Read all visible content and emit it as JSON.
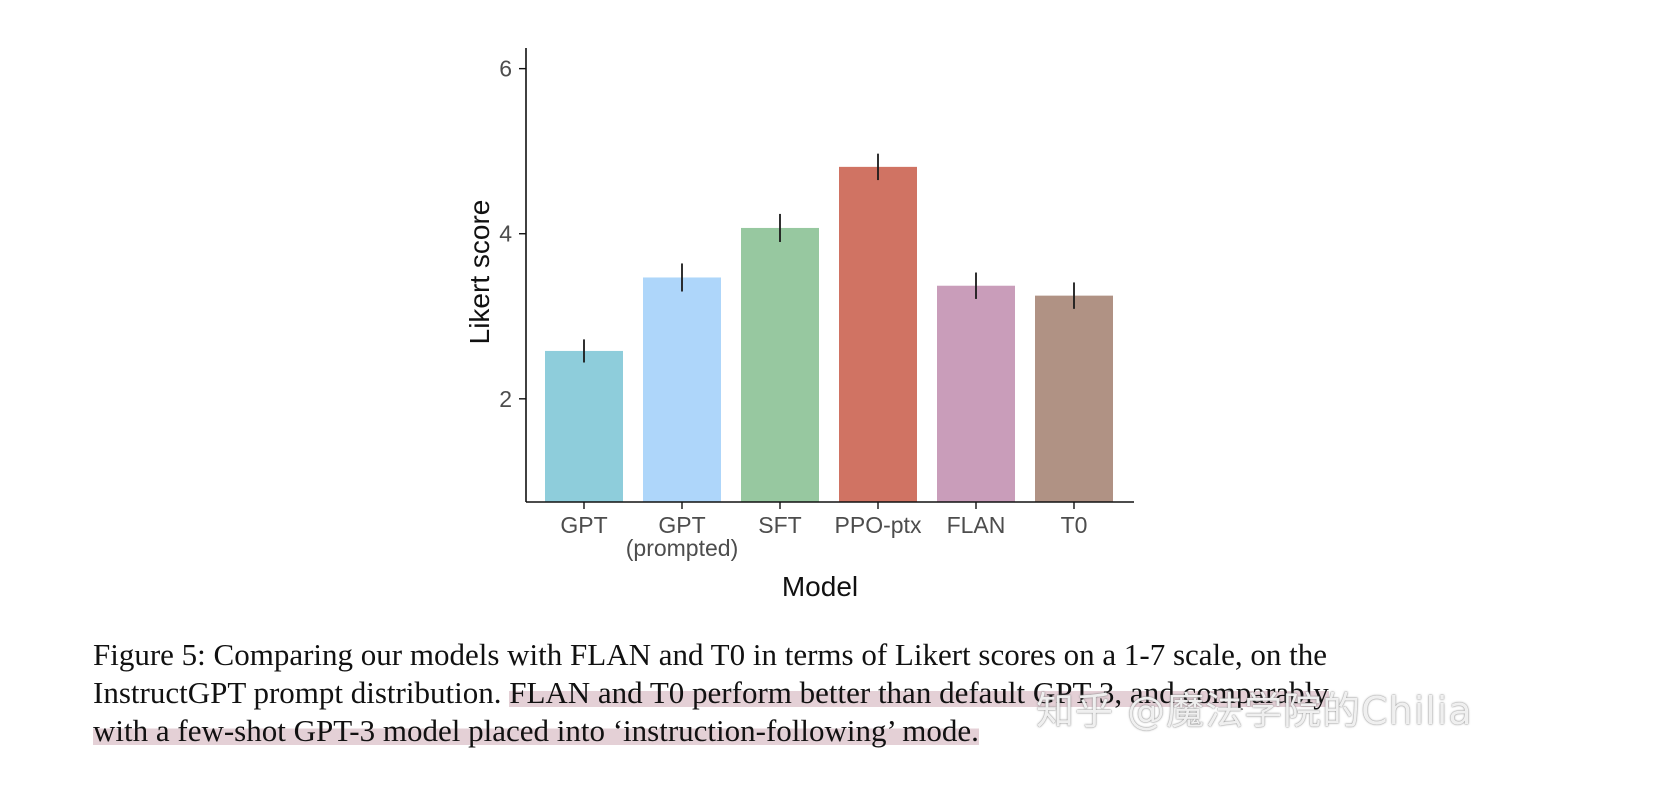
{
  "chart_data": {
    "type": "bar",
    "categories": [
      [
        "GPT"
      ],
      [
        "GPT",
        "(prompted)"
      ],
      [
        "SFT"
      ],
      [
        "PPO-ptx"
      ],
      [
        "FLAN"
      ],
      [
        "T0"
      ]
    ],
    "values": [
      2.58,
      3.47,
      4.07,
      4.81,
      3.37,
      3.25
    ],
    "errors": [
      0.14,
      0.17,
      0.17,
      0.16,
      0.16,
      0.16
    ],
    "colors": [
      "#8ecddb",
      "#aed6fa",
      "#97c8a0",
      "#d07363",
      "#c99dba",
      "#b09284"
    ],
    "xlabel": "Model",
    "ylabel": "Likert score",
    "ylim": [
      0.75,
      6.25
    ],
    "yticks": [
      2,
      4,
      6
    ],
    "ytick_labels": [
      "2",
      "4",
      "6"
    ],
    "grid": false
  },
  "caption": {
    "line1": "Figure 5: Comparing our models with FLAN and T0 in terms of Likert scores on a 1-7 scale, on the",
    "line2_plain": "InstructGPT prompt distribution. ",
    "line2_highlight": "FLAN and T0 perform better than default GPT-3, and comparably",
    "line3_highlight": "with a few-shot GPT-3 model placed into ‘instruction-following’ mode."
  },
  "watermark": "知乎 @魔法学院的Chilia"
}
